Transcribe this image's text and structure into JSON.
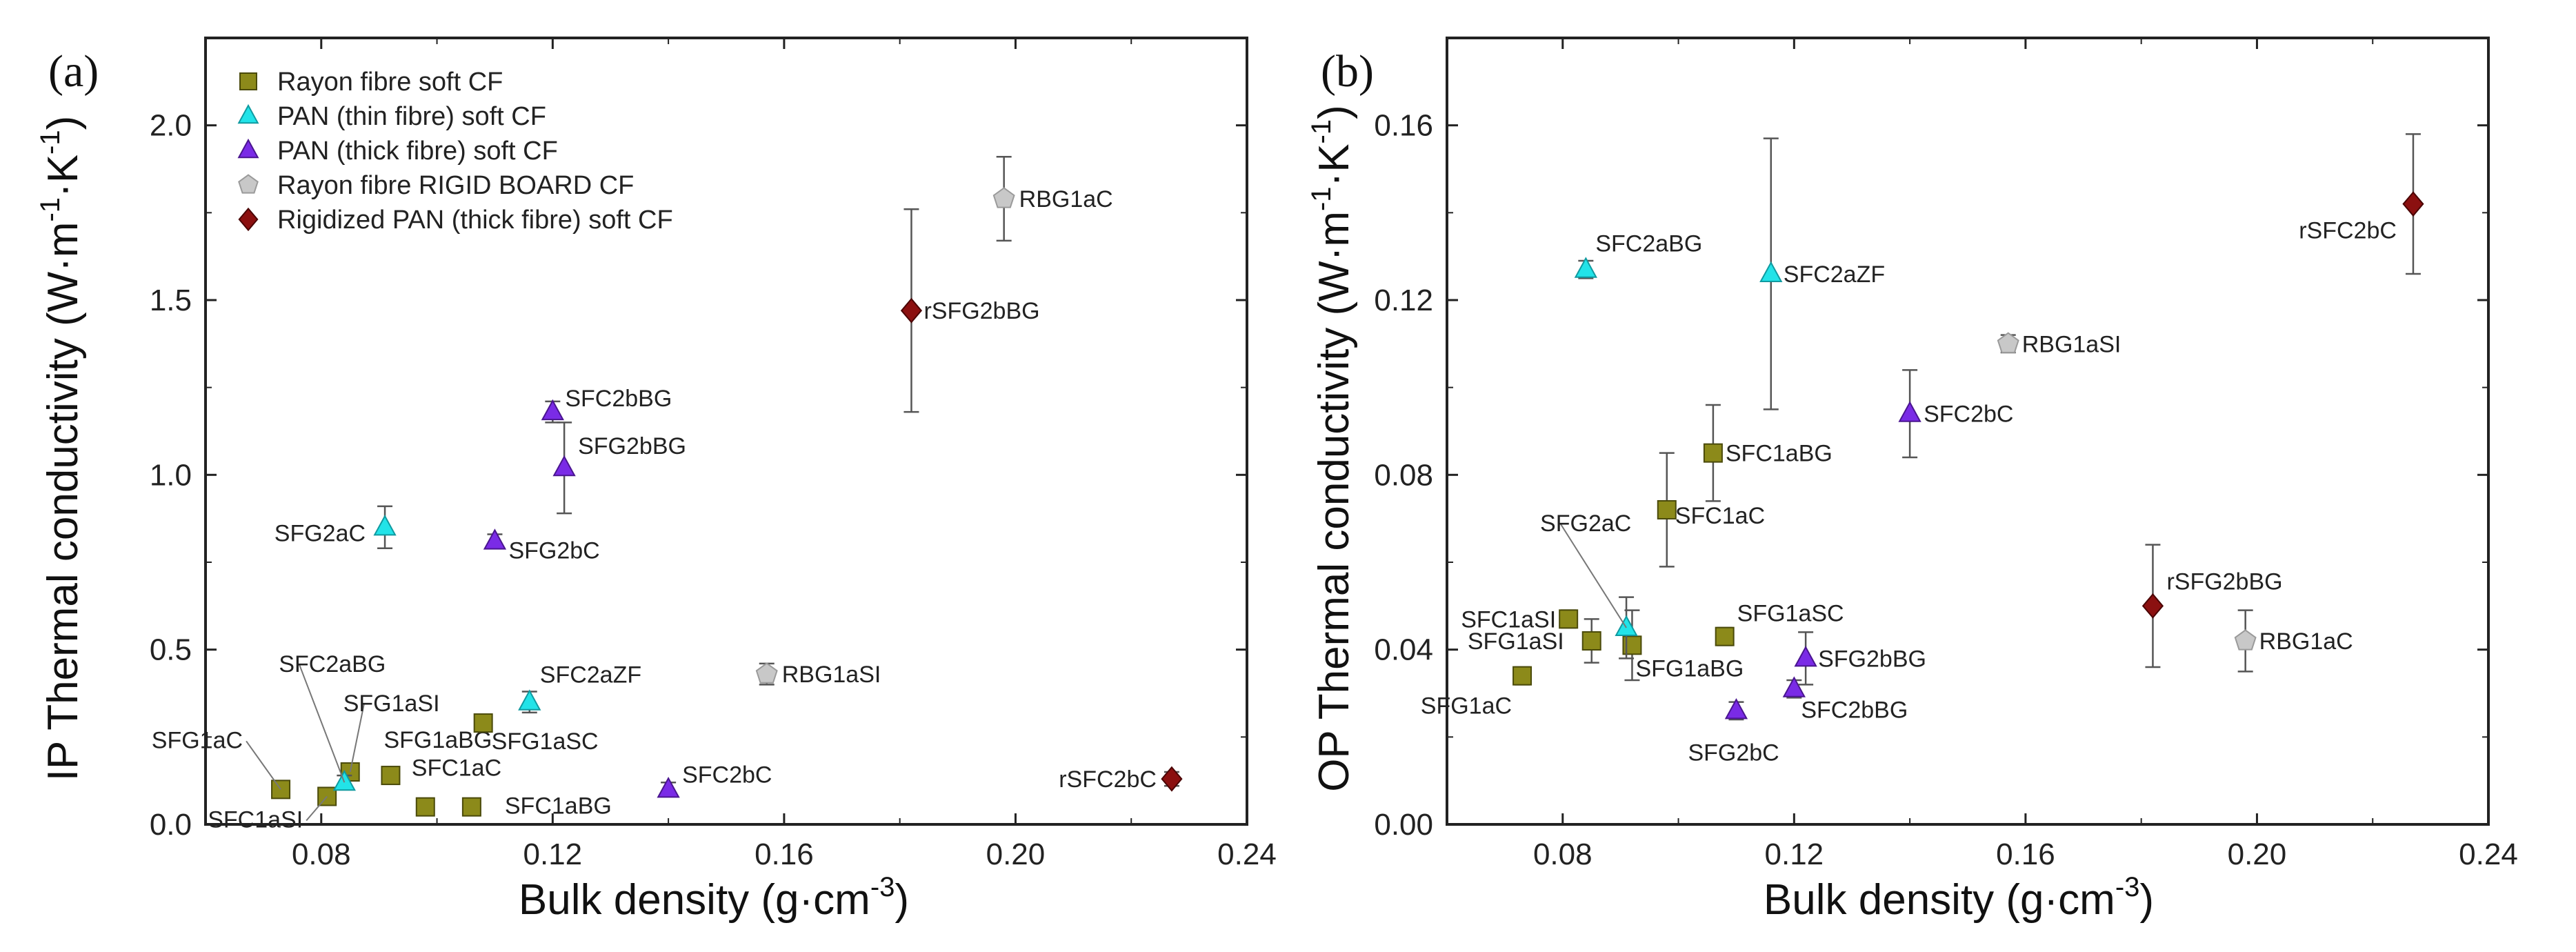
{
  "chart_data": [
    {
      "panel_label": "(a)",
      "type": "scatter",
      "xlabel": "Bulk density (g·cm",
      "xlabel_sup": "-3",
      "xlabel_end": ")",
      "ylabel": "IP Thermal conductivity (W·m",
      "ylabel_sup1": "-1",
      "ylabel_mid": "·K",
      "ylabel_sup2": "-1",
      "ylabel_end": ")",
      "xlim": [
        0.06,
        0.24
      ],
      "ylim": [
        0.0,
        2.25
      ],
      "xticks": [
        "0.08",
        "0.12",
        "0.16",
        "0.20",
        "0.24"
      ],
      "yticks": [
        "0.0",
        "0.5",
        "1.0",
        "1.5",
        "2.0"
      ],
      "legend_position": "top-left",
      "legend": [
        {
          "name": "Rayon fibre soft CF",
          "key": "rayon_soft"
        },
        {
          "name": "PAN (thin fibre) soft CF",
          "key": "pan_thin"
        },
        {
          "name": "PAN (thick fibre) soft CF",
          "key": "pan_thick"
        },
        {
          "name": "Rayon fibre RIGID BOARD CF",
          "key": "rayon_rigid"
        },
        {
          "name": "Rigidized PAN (thick fibre) soft CF",
          "key": "rig_pan"
        }
      ],
      "points": [
        {
          "label": "SFG1aC",
          "x": 0.073,
          "y": 0.1,
          "err": 0.02,
          "series": "rayon_soft"
        },
        {
          "label": "SFC1aSI",
          "x": 0.081,
          "y": 0.08,
          "err": 0.02,
          "series": "rayon_soft"
        },
        {
          "label": "SFG1aSI",
          "x": 0.085,
          "y": 0.15,
          "err": 0.02,
          "series": "rayon_soft"
        },
        {
          "label": "SFG1aBG",
          "x": 0.092,
          "y": 0.14,
          "err": 0.02,
          "series": "rayon_soft"
        },
        {
          "label": "SFC1aC",
          "x": 0.098,
          "y": 0.05,
          "err": 0.02,
          "series": "rayon_soft"
        },
        {
          "label": "SFC1aBG",
          "x": 0.106,
          "y": 0.05,
          "err": 0.02,
          "series": "rayon_soft"
        },
        {
          "label": "SFG1aSC",
          "x": 0.108,
          "y": 0.29,
          "err": 0.02,
          "series": "rayon_soft"
        },
        {
          "label": "SFC2aBG",
          "x": 0.084,
          "y": 0.12,
          "err": 0.02,
          "series": "pan_thin"
        },
        {
          "label": "SFG2aC",
          "x": 0.091,
          "y": 0.85,
          "err": 0.06,
          "series": "pan_thin"
        },
        {
          "label": "SFC2aZF",
          "x": 0.116,
          "y": 0.35,
          "err": 0.03,
          "series": "pan_thin"
        },
        {
          "label": "SFG2bC",
          "x": 0.11,
          "y": 0.81,
          "err": 0.02,
          "series": "pan_thick"
        },
        {
          "label": "SFC2bBG",
          "x": 0.12,
          "y": 1.18,
          "err": 0.03,
          "series": "pan_thick"
        },
        {
          "label": "SFG2bBG",
          "x": 0.122,
          "y": 1.02,
          "err": 0.13,
          "series": "pan_thick"
        },
        {
          "label": "SFC2bC",
          "x": 0.14,
          "y": 0.1,
          "err": 0.02,
          "series": "pan_thick"
        },
        {
          "label": "RBG1aSI",
          "x": 0.157,
          "y": 0.43,
          "err": 0.03,
          "series": "rayon_rigid"
        },
        {
          "label": "RBG1aC",
          "x": 0.198,
          "y": 1.79,
          "err": 0.12,
          "series": "rayon_rigid"
        },
        {
          "label": "rSFG2bBG",
          "x": 0.182,
          "y": 1.47,
          "err": 0.29,
          "series": "rig_pan"
        },
        {
          "label": "rSFC2bC",
          "x": 0.227,
          "y": 0.13,
          "err": 0.02,
          "series": "rig_pan"
        }
      ]
    },
    {
      "panel_label": "(b)",
      "type": "scatter",
      "xlabel": "Bulk density (g·cm",
      "xlabel_sup": "-3",
      "xlabel_end": ")",
      "ylabel": "OP Thermal conductivity (W·m",
      "ylabel_sup1": "-1",
      "ylabel_mid": "·K",
      "ylabel_sup2": "-1",
      "ylabel_end": ")",
      "xlim": [
        0.06,
        0.24
      ],
      "ylim": [
        0.0,
        0.18
      ],
      "xticks": [
        "0.08",
        "0.12",
        "0.16",
        "0.20",
        "0.24"
      ],
      "yticks": [
        "0.00",
        "0.04",
        "0.08",
        "0.12",
        "0.16"
      ],
      "points": [
        {
          "label": "SFC1aSI",
          "x": 0.081,
          "y": 0.047,
          "err": 0.002,
          "series": "rayon_soft"
        },
        {
          "label": "SFG1aC",
          "x": 0.073,
          "y": 0.034,
          "err": 0.002,
          "series": "rayon_soft"
        },
        {
          "label": "SFG1aSI",
          "x": 0.085,
          "y": 0.042,
          "err": 0.005,
          "series": "rayon_soft"
        },
        {
          "label": "SFG1aBG",
          "x": 0.092,
          "y": 0.041,
          "err": 0.008,
          "series": "rayon_soft"
        },
        {
          "label": "SFC1aC",
          "x": 0.098,
          "y": 0.072,
          "err": 0.013,
          "series": "rayon_soft"
        },
        {
          "label": "SFC1aBG",
          "x": 0.106,
          "y": 0.085,
          "err": 0.011,
          "series": "rayon_soft"
        },
        {
          "label": "SFG1aSC",
          "x": 0.108,
          "y": 0.043,
          "err": 0.002,
          "series": "rayon_soft"
        },
        {
          "label": "SFC2aBG",
          "x": 0.084,
          "y": 0.127,
          "err": 0.002,
          "series": "pan_thin"
        },
        {
          "label": "SFG2aC",
          "x": 0.091,
          "y": 0.045,
          "err": 0.007,
          "series": "pan_thin"
        },
        {
          "label": "SFC2aZF",
          "x": 0.116,
          "y": 0.126,
          "err": 0.031,
          "series": "pan_thin"
        },
        {
          "label": "SFG2bC",
          "x": 0.11,
          "y": 0.026,
          "err": 0.002,
          "series": "pan_thick"
        },
        {
          "label": "SFC2bBG",
          "x": 0.12,
          "y": 0.031,
          "err": 0.002,
          "series": "pan_thick"
        },
        {
          "label": "SFG2bBG",
          "x": 0.122,
          "y": 0.038,
          "err": 0.006,
          "series": "pan_thick"
        },
        {
          "label": "SFC2bC",
          "x": 0.14,
          "y": 0.094,
          "err": 0.01,
          "series": "pan_thick"
        },
        {
          "label": "RBG1aSI",
          "x": 0.157,
          "y": 0.11,
          "err": 0.002,
          "series": "rayon_rigid"
        },
        {
          "label": "RBG1aC",
          "x": 0.198,
          "y": 0.042,
          "err": 0.007,
          "series": "rayon_rigid"
        },
        {
          "label": "rSFG2bBG",
          "x": 0.182,
          "y": 0.05,
          "err": 0.014,
          "series": "rig_pan"
        },
        {
          "label": "rSFC2bC",
          "x": 0.227,
          "y": 0.142,
          "err": 0.016,
          "series": "rig_pan"
        }
      ]
    }
  ],
  "series_style": {
    "rayon_soft": {
      "shape": "square",
      "fill": "#8c8a1a",
      "stroke": "#4a4a0a"
    },
    "pan_thin": {
      "shape": "triangle",
      "fill": "#22e3e8",
      "stroke": "#109aa0"
    },
    "pan_thick": {
      "shape": "triangle",
      "fill": "#7a2be6",
      "stroke": "#4a1590"
    },
    "rayon_rigid": {
      "shape": "pentagon",
      "fill": "#c8c8c8",
      "stroke": "#9a9a9a"
    },
    "rig_pan": {
      "shape": "diamond",
      "fill": "#8b1010",
      "stroke": "#4a0505"
    }
  }
}
